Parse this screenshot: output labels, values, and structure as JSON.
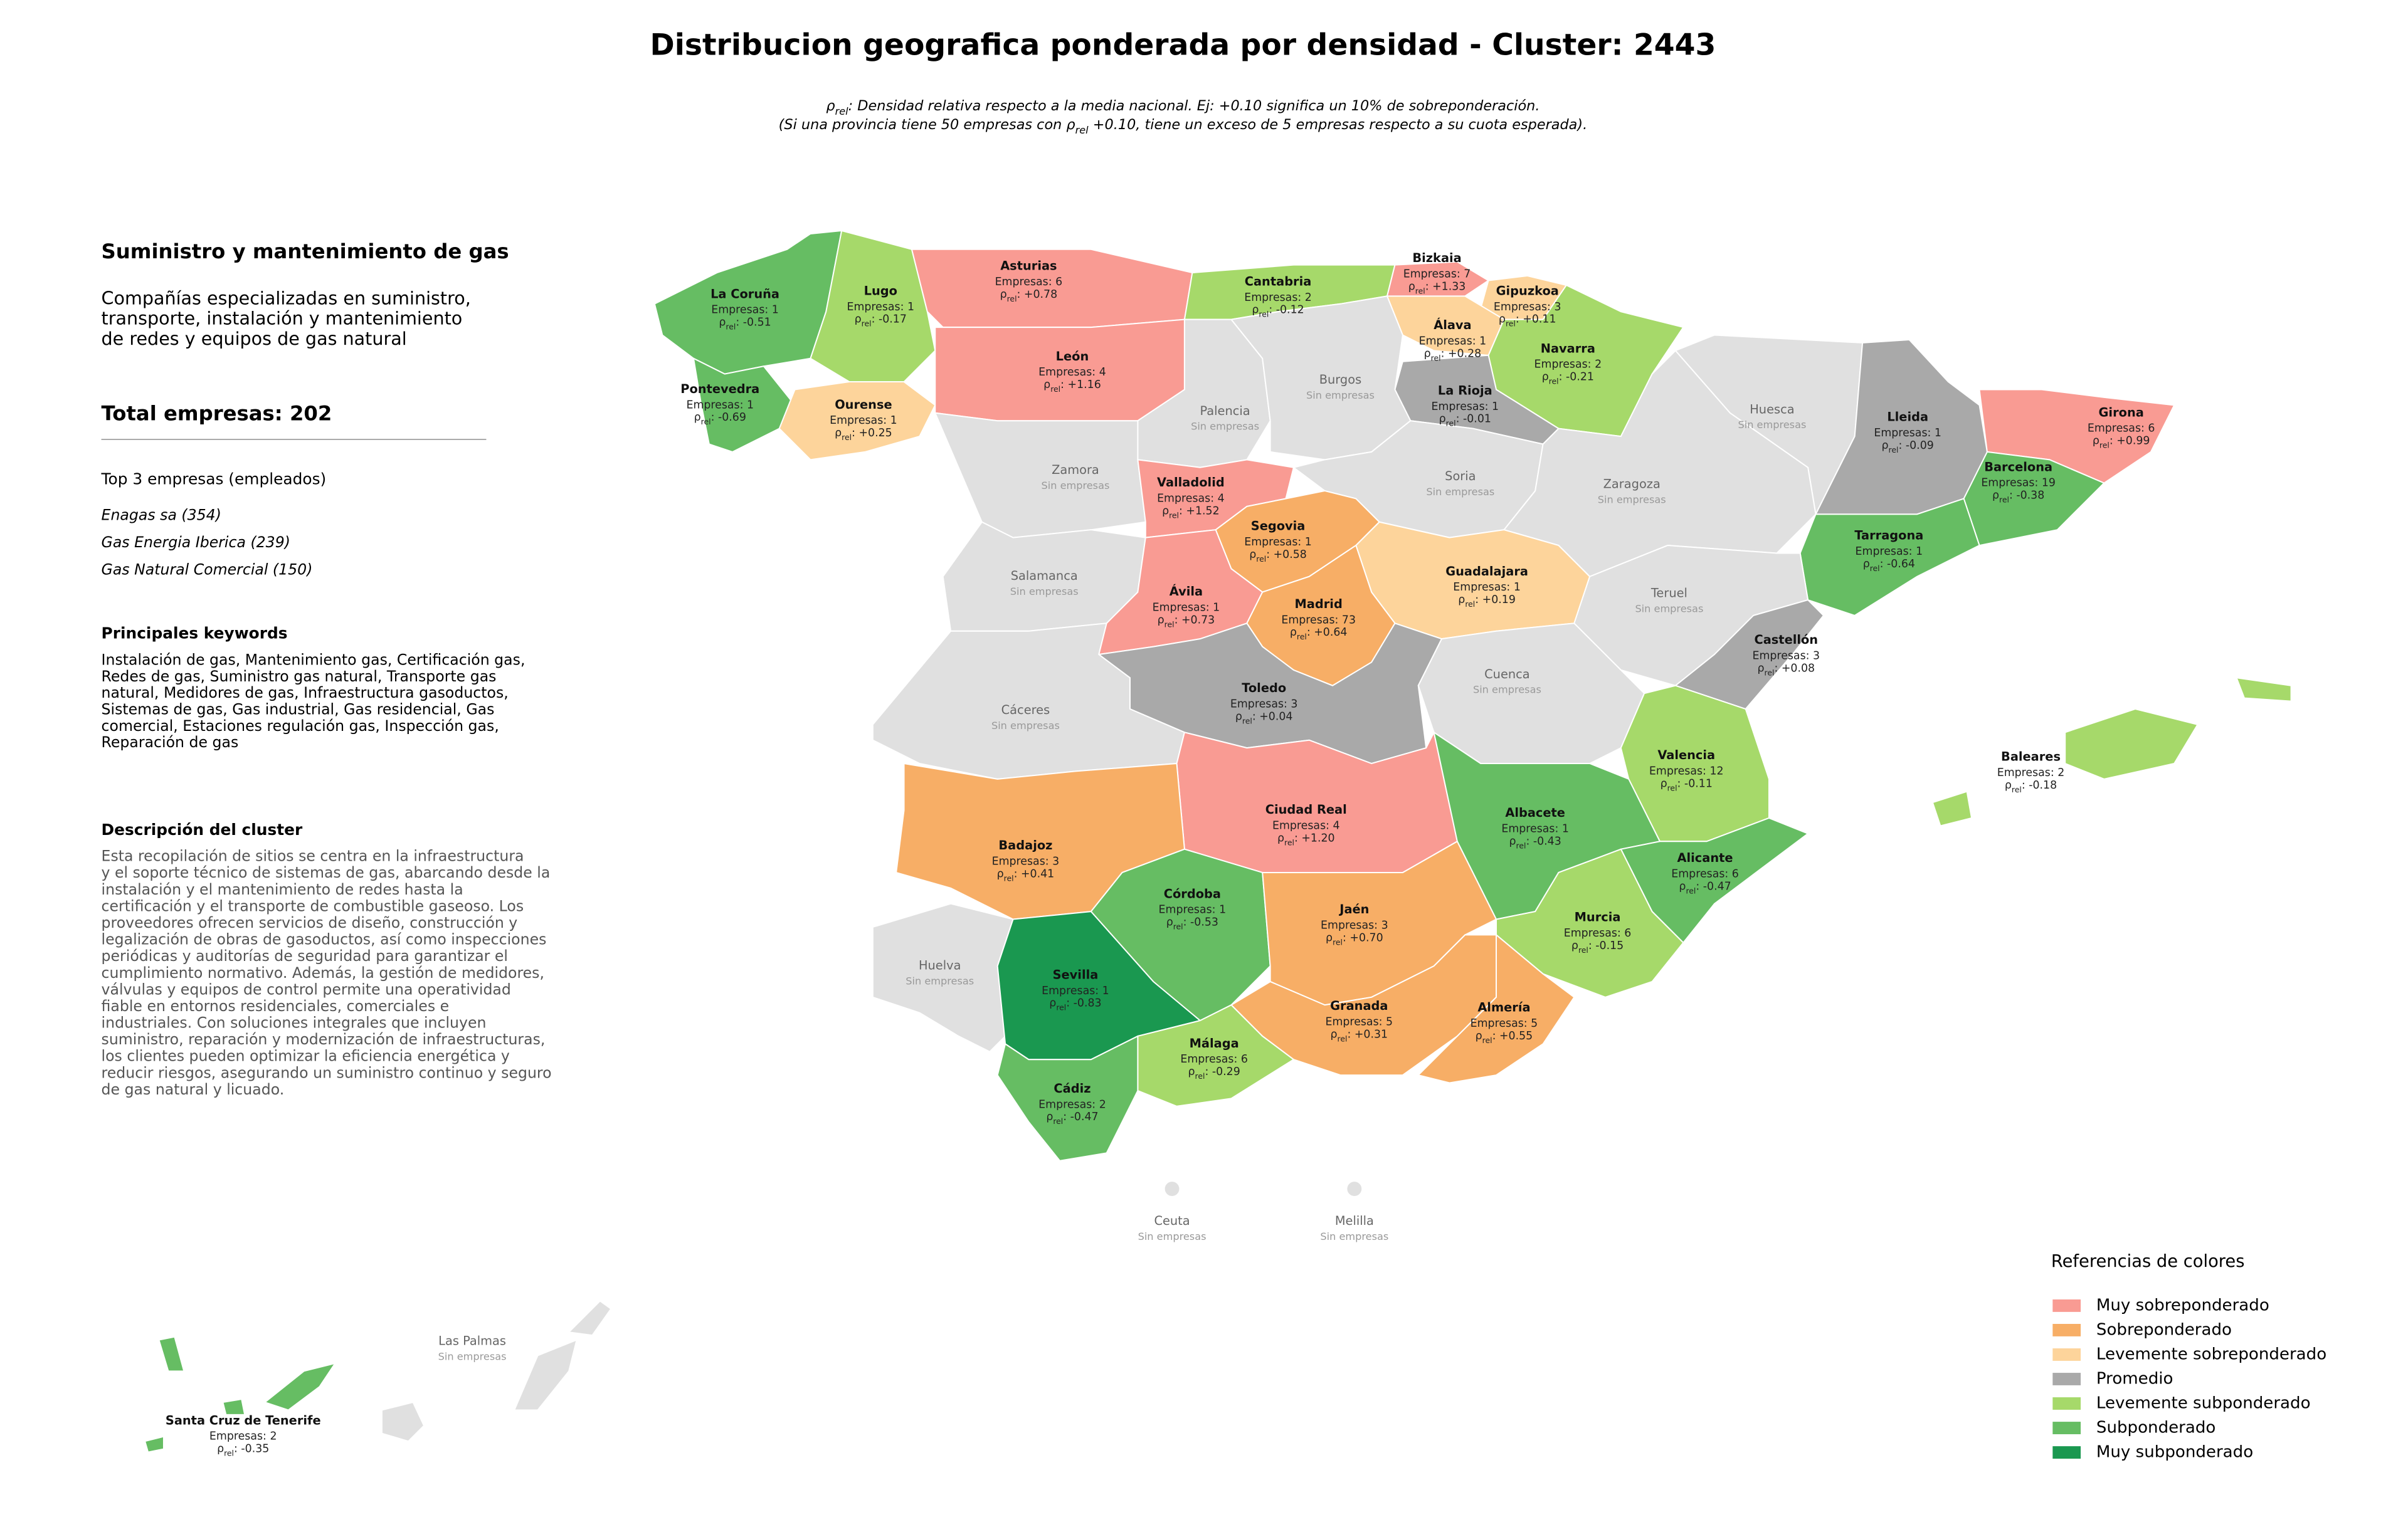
{
  "header": {
    "title": "Distribucion geografica ponderada por densidad - Cluster: 2443",
    "subtitle": {
      "line1": [
        "ρ",
        "rel",
        ": Densidad relativa respecto a la media nacional. Ej: +0.10 significa un 10% de sobreponderación."
      ],
      "line2": [
        "(Si una provincia tiene 50 empresas con ρ",
        "rel",
        " +0.10, tiene un exceso de 5 empresas respecto a su cuota esperada)."
      ]
    }
  },
  "panel": {
    "heading": "Suministro y mantenimiento de gas",
    "summary": [
      "Compañías especializadas en suministro,",
      "transporte, instalación y mantenimiento",
      "de redes y equipos de gas natural"
    ],
    "total_label": "Total empresas:",
    "total": 202,
    "top_heading": "Top 3 empresas (empleados)",
    "top": [
      "Enagas sa (354)",
      "Gas Energia Iberica (239)",
      "Gas Natural Comercial (150)"
    ],
    "keywords_heading": "Principales keywords",
    "keywords": [
      "Instalación de gas, Mantenimiento gas, Certificación gas,",
      "Redes de gas, Suministro gas natural, Transporte gas",
      "natural, Medidores de gas, Infraestructura gasoductos,",
      "Sistemas de gas, Gas industrial, Gas residencial, Gas",
      "comercial, Estaciones regulación gas, Inspección gas,",
      "Reparación de gas"
    ],
    "description_heading": "Descripción del cluster",
    "description": [
      "Esta recopilación de sitios se centra en la infraestructura",
      "y el soporte técnico de sistemas de gas, abarcando desde la",
      "instalación y el mantenimiento de redes hasta la",
      "certificación y el transporte de combustible gaseoso. Los",
      "proveedores ofrecen servicios de diseño, construcción y",
      "legalización de obras de gasoductos, así como inspecciones",
      "periódicas y auditorías de seguridad para garantizar el",
      "cumplimiento normativo. Además, la gestión de medidores,",
      "válvulas y equipos de control permite una operatividad",
      "fiable en entornos residenciales, comerciales e",
      "industriales. Con soluciones integrales que incluyen",
      "suministro, reparación y modernización de infraestructuras,",
      "los clientes pueden optimizar la eficiencia energética y",
      "reducir riesgos, asegurando un suministro continuo y seguro",
      "de gas natural y licuado."
    ]
  },
  "map": {
    "empresas_label": "Empresas:",
    "rho_symbol": "ρ",
    "rho_subscript": "rel",
    "rho_suffix": ":",
    "no_companies": "Sin empresas",
    "provinces": [
      {
        "name": "La Coruña",
        "empresas": 1,
        "rho": "-0.51",
        "color": "#66bd63"
      },
      {
        "name": "Lugo",
        "empresas": 1,
        "rho": "-0.17",
        "color": "#a6d96a"
      },
      {
        "name": "Asturias",
        "empresas": 6,
        "rho": "+0.78",
        "color": "#f99b93"
      },
      {
        "name": "Cantabria",
        "empresas": 2,
        "rho": "-0.12",
        "color": "#a6d96a"
      },
      {
        "name": "Bizkaia",
        "empresas": 7,
        "rho": "+1.33",
        "color": "#f99b93"
      },
      {
        "name": "Gipuzkoa",
        "empresas": 3,
        "rho": "+0.11",
        "color": "#fdd49b"
      },
      {
        "name": "Álava",
        "empresas": 1,
        "rho": "+0.28",
        "color": "#fdd49b"
      },
      {
        "name": "Navarra",
        "empresas": 2,
        "rho": "-0.21",
        "color": "#a6d96a"
      },
      {
        "name": "La Rioja",
        "empresas": 1,
        "rho": "-0.01",
        "color": "#a9a9a9"
      },
      {
        "name": "Pontevedra",
        "empresas": 1,
        "rho": "-0.69",
        "color": "#66bd63"
      },
      {
        "name": "Ourense",
        "empresas": 1,
        "rho": "+0.25",
        "color": "#fdd49b"
      },
      {
        "name": "León",
        "empresas": 4,
        "rho": "+1.16",
        "color": "#f99b93"
      },
      {
        "name": "Palencia",
        "color": "#e0e0e0"
      },
      {
        "name": "Burgos",
        "color": "#e0e0e0"
      },
      {
        "name": "Huesca",
        "color": "#e0e0e0"
      },
      {
        "name": "Lleida",
        "empresas": 1,
        "rho": "-0.09",
        "color": "#a9a9a9"
      },
      {
        "name": "Girona",
        "empresas": 6,
        "rho": "+0.99",
        "color": "#f99b93"
      },
      {
        "name": "Barcelona",
        "empresas": 19,
        "rho": "-0.38",
        "color": "#66bd63"
      },
      {
        "name": "Zamora",
        "color": "#e0e0e0"
      },
      {
        "name": "Valladolid",
        "empresas": 4,
        "rho": "+1.52",
        "color": "#f99b93"
      },
      {
        "name": "Soria",
        "color": "#e0e0e0"
      },
      {
        "name": "Zaragoza",
        "color": "#e0e0e0"
      },
      {
        "name": "Segovia",
        "empresas": 1,
        "rho": "+0.58",
        "color": "#f7ae66"
      },
      {
        "name": "Tarragona",
        "empresas": 1,
        "rho": "-0.64",
        "color": "#66bd63"
      },
      {
        "name": "Salamanca",
        "color": "#e0e0e0"
      },
      {
        "name": "Guadalajara",
        "empresas": 1,
        "rho": "+0.19",
        "color": "#fdd49b"
      },
      {
        "name": "Ávila",
        "empresas": 1,
        "rho": "+0.73",
        "color": "#f99b93"
      },
      {
        "name": "Madrid",
        "empresas": 73,
        "rho": "+0.64",
        "color": "#f7ae66"
      },
      {
        "name": "Teruel",
        "color": "#e0e0e0"
      },
      {
        "name": "Castellón",
        "empresas": 3,
        "rho": "+0.08",
        "color": "#a9a9a9"
      },
      {
        "name": "Toledo",
        "empresas": 3,
        "rho": "+0.04",
        "color": "#a9a9a9"
      },
      {
        "name": "Cuenca",
        "color": "#e0e0e0"
      },
      {
        "name": "Cáceres",
        "color": "#e0e0e0"
      },
      {
        "name": "Valencia",
        "empresas": 12,
        "rho": "-0.11",
        "color": "#a6d96a"
      },
      {
        "name": "Baleares",
        "empresas": 2,
        "rho": "-0.18",
        "color": "#a6d96a"
      },
      {
        "name": "Ciudad Real",
        "empresas": 4,
        "rho": "+1.20",
        "color": "#f99b93"
      },
      {
        "name": "Albacete",
        "empresas": 1,
        "rho": "-0.43",
        "color": "#66bd63"
      },
      {
        "name": "Badajoz",
        "empresas": 3,
        "rho": "+0.41",
        "color": "#f7ae66"
      },
      {
        "name": "Alicante",
        "empresas": 6,
        "rho": "-0.47",
        "color": "#66bd63"
      },
      {
        "name": "Córdoba",
        "empresas": 1,
        "rho": "-0.53",
        "color": "#66bd63"
      },
      {
        "name": "Jaén",
        "empresas": 3,
        "rho": "+0.70",
        "color": "#f7ae66"
      },
      {
        "name": "Murcia",
        "empresas": 6,
        "rho": "-0.15",
        "color": "#a6d96a"
      },
      {
        "name": "Huelva",
        "color": "#e0e0e0"
      },
      {
        "name": "Sevilla",
        "empresas": 1,
        "rho": "-0.83",
        "color": "#1a9850"
      },
      {
        "name": "Granada",
        "empresas": 5,
        "rho": "+0.31",
        "color": "#f7ae66"
      },
      {
        "name": "Almería",
        "empresas": 5,
        "rho": "+0.55",
        "color": "#f7ae66"
      },
      {
        "name": "Málaga",
        "empresas": 6,
        "rho": "-0.29",
        "color": "#a6d96a"
      },
      {
        "name": "Cádiz",
        "empresas": 2,
        "rho": "-0.47",
        "color": "#66bd63"
      },
      {
        "name": "Ceuta",
        "color": "#e0e0e0"
      },
      {
        "name": "Melilla",
        "color": "#e0e0e0"
      },
      {
        "name": "Las Palmas",
        "color": "#e0e0e0"
      },
      {
        "name": "Santa Cruz de Tenerife",
        "empresas": 2,
        "rho": "-0.35",
        "color": "#66bd63"
      }
    ]
  },
  "legend": {
    "title": "Referencias de colores",
    "items": [
      {
        "name": "Muy sobreponderado",
        "color": "#f99b93"
      },
      {
        "name": "Sobreponderado",
        "color": "#f7ae66"
      },
      {
        "name": "Levemente sobreponderado",
        "color": "#fdd49b"
      },
      {
        "name": "Promedio",
        "color": "#a9a9a9"
      },
      {
        "name": "Levemente subponderado",
        "color": "#a6d96a"
      },
      {
        "name": "Subponderado",
        "color": "#66bd63"
      },
      {
        "name": "Muy subponderado",
        "color": "#1a9850"
      }
    ]
  }
}
